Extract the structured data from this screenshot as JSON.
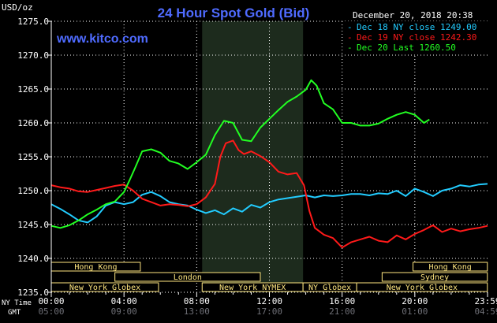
{
  "chart_data": {
    "type": "line",
    "title": "24 Hour Spot Gold (Bid)",
    "source": "www.kitco.com",
    "timestamp": "December 20, 2018 20:38",
    "ylabel": "USD/oz",
    "ylim": [
      1235.0,
      1275.0
    ],
    "yticks": [
      "1275.0",
      "1270.0",
      "1265.0",
      "1260.0",
      "1255.0",
      "1250.0",
      "1245.0",
      "1240.0",
      "1235.0"
    ],
    "xlim": [
      0,
      24
    ],
    "x_row_labels": {
      "ny": "NY Time",
      "gmt": "GMT"
    },
    "xticks": [
      {
        "hour": 0,
        "ny": "00:00",
        "gmt": "05:00"
      },
      {
        "hour": 4,
        "ny": "04:00",
        "gmt": "09:00"
      },
      {
        "hour": 8,
        "ny": "08:00",
        "gmt": "13:00"
      },
      {
        "hour": 12,
        "ny": "12:00",
        "gmt": "17:00"
      },
      {
        "hour": 16,
        "ny": "16:00",
        "gmt": "21:00"
      },
      {
        "hour": 20,
        "ny": "20:00",
        "gmt": "01:00"
      },
      {
        "hour": 24,
        "ny": "23:59",
        "gmt": "04:59"
      }
    ],
    "nymex_session": [
      8.3,
      13.85
    ],
    "legend": [
      {
        "label": "Dec 18 NY close 1249.00",
        "color": "#22ccff"
      },
      {
        "label": "Dec 19 NY close 1242.30",
        "color": "#ff1a1a"
      },
      {
        "label": "Dec 20 Last 1260.50",
        "color": "#22ff22"
      }
    ],
    "sessions": [
      {
        "label": "Hong Kong",
        "start": 0,
        "end": 4.9,
        "row": 0
      },
      {
        "label": "Hong Kong",
        "start": 19.9,
        "end": 23.99,
        "row": 0
      },
      {
        "label": "London",
        "start": 3.5,
        "end": 11.5,
        "row": 1
      },
      {
        "label": "Sydney",
        "start": 18.2,
        "end": 23.99,
        "row": 1
      },
      {
        "label": "New York Globex",
        "start": 0,
        "end": 5.9,
        "row": 2
      },
      {
        "label": "New York NYMEX",
        "start": 8.3,
        "end": 13.85,
        "row": 2
      },
      {
        "label": "NY Globex",
        "start": 13.85,
        "end": 16.8,
        "row": 2
      },
      {
        "label": "New York Globex",
        "start": 16.8,
        "end": 23.99,
        "row": 2
      }
    ],
    "series": [
      {
        "name": "Dec 18",
        "color": "#22ccff",
        "x": [
          0,
          0.5,
          1,
          1.5,
          2,
          2.5,
          3,
          3.5,
          4,
          4.5,
          5,
          5.5,
          6,
          6.5,
          7,
          7.5,
          8,
          8.5,
          9,
          9.5,
          10,
          10.5,
          11,
          11.5,
          12,
          12.5,
          13,
          13.5,
          14,
          14.5,
          15,
          15.5,
          16,
          16.5,
          17,
          17.5,
          18,
          18.5,
          19,
          19.5,
          20,
          20.5,
          21,
          21.5,
          22,
          22.5,
          23,
          23.5,
          24
        ],
        "values": [
          1248.0,
          1247.3,
          1246.5,
          1245.6,
          1245.3,
          1246.2,
          1247.8,
          1248.3,
          1248.0,
          1248.3,
          1249.4,
          1249.8,
          1249.2,
          1248.3,
          1248.0,
          1247.8,
          1247.2,
          1246.7,
          1247.1,
          1246.5,
          1247.4,
          1246.9,
          1247.9,
          1247.5,
          1248.3,
          1248.7,
          1248.9,
          1249.1,
          1249.3,
          1249.0,
          1249.3,
          1249.2,
          1249.3,
          1249.5,
          1249.5,
          1249.3,
          1249.6,
          1249.5,
          1250.0,
          1249.2,
          1250.3,
          1249.8,
          1249.2,
          1250.0,
          1250.3,
          1250.8,
          1250.6,
          1250.9,
          1251.0
        ]
      },
      {
        "name": "Dec 19",
        "color": "#ff1a1a",
        "x": [
          0,
          0.5,
          1,
          1.5,
          2,
          2.5,
          3,
          3.5,
          4,
          4.5,
          5,
          5.5,
          6,
          6.5,
          7,
          7.5,
          8,
          8.5,
          9,
          9.3,
          9.6,
          10,
          10.3,
          10.6,
          11,
          11.5,
          12,
          12.5,
          13,
          13.5,
          13.9,
          14.2,
          14.5,
          15,
          15.5,
          16,
          16.5,
          17,
          17.5,
          18,
          18.5,
          19,
          19.5,
          20,
          20.5,
          21,
          21.5,
          22,
          22.5,
          23,
          23.5,
          24
        ],
        "values": [
          1250.8,
          1250.5,
          1250.3,
          1249.9,
          1249.8,
          1250.1,
          1250.4,
          1250.7,
          1250.9,
          1250.0,
          1248.8,
          1248.3,
          1247.8,
          1248.0,
          1247.9,
          1247.7,
          1248.0,
          1249.0,
          1251.0,
          1255.0,
          1257.0,
          1257.4,
          1256.0,
          1255.4,
          1255.8,
          1255.1,
          1254.2,
          1252.8,
          1252.4,
          1252.6,
          1250.8,
          1247.0,
          1244.5,
          1243.5,
          1243.0,
          1241.6,
          1242.4,
          1242.8,
          1243.2,
          1242.6,
          1242.4,
          1243.4,
          1242.8,
          1243.6,
          1244.2,
          1244.9,
          1243.9,
          1244.4,
          1244.0,
          1244.3,
          1244.5,
          1244.8
        ]
      },
      {
        "name": "Dec 20",
        "color": "#22ff22",
        "x": [
          0,
          0.5,
          1,
          1.5,
          2,
          2.5,
          3,
          3.5,
          4,
          4.3,
          4.6,
          5,
          5.5,
          6,
          6.5,
          7,
          7.5,
          8,
          8.5,
          9,
          9.5,
          10,
          10.5,
          11,
          11.5,
          12,
          12.5,
          13,
          13.5,
          14,
          14.3,
          14.6,
          15,
          15.5,
          16,
          16.5,
          17,
          17.5,
          18,
          18.5,
          19,
          19.5,
          20,
          20.5,
          20.8
        ],
        "values": [
          1244.8,
          1244.5,
          1244.9,
          1245.6,
          1246.5,
          1247.2,
          1248.0,
          1248.4,
          1249.8,
          1251.5,
          1253.3,
          1255.8,
          1256.1,
          1255.6,
          1254.4,
          1254.0,
          1253.2,
          1254.2,
          1255.3,
          1258.2,
          1260.3,
          1260.0,
          1257.5,
          1257.3,
          1259.3,
          1260.6,
          1261.9,
          1263.1,
          1263.9,
          1264.9,
          1266.3,
          1265.5,
          1262.9,
          1262.0,
          1260.0,
          1260.0,
          1259.6,
          1259.6,
          1259.9,
          1260.6,
          1261.2,
          1261.6,
          1261.2,
          1260.0,
          1260.5
        ]
      }
    ]
  }
}
